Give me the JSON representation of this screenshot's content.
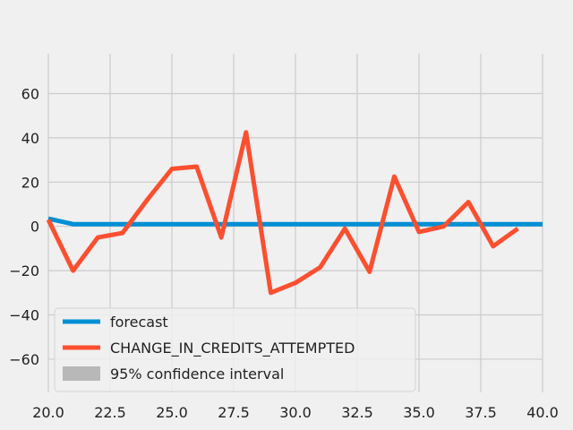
{
  "chart_data": {
    "type": "line",
    "xlim": [
      20.0,
      40.0
    ],
    "ylim": [
      -75,
      78
    ],
    "x_ticks": [
      "20.0",
      "22.5",
      "25.0",
      "27.5",
      "30.0",
      "32.5",
      "35.0",
      "37.5",
      "40.0"
    ],
    "x_tick_values": [
      20.0,
      22.5,
      25.0,
      27.5,
      30.0,
      32.5,
      35.0,
      37.5,
      40.0
    ],
    "y_ticks": [
      "60",
      "40",
      "20",
      "0",
      "−20",
      "−40",
      "−60"
    ],
    "y_tick_values": [
      60,
      40,
      20,
      0,
      -20,
      -40,
      -60
    ],
    "grid": true,
    "legend_placement": "lower-left",
    "series": [
      {
        "name": "forecast",
        "color": "#008fd5",
        "x": [
          20,
          21,
          22,
          23,
          24,
          25,
          26,
          27,
          28,
          29,
          30,
          31,
          32,
          33,
          34,
          35,
          36,
          37,
          38,
          39,
          40
        ],
        "y": [
          3.5,
          1,
          1,
          1,
          1,
          1,
          1,
          1,
          1,
          1,
          1,
          1,
          1,
          1,
          1,
          1,
          1,
          1,
          1,
          1,
          1
        ]
      },
      {
        "name": "CHANGE_IN_CREDITS_ATTEMPTED",
        "color": "#fc4f30",
        "x": [
          20,
          21,
          22,
          23,
          24,
          25,
          26,
          27,
          28,
          29,
          30,
          31,
          32,
          33,
          34,
          35,
          36,
          37,
          38,
          39
        ],
        "y": [
          3,
          -20,
          -5,
          -3,
          12,
          26,
          27,
          -5,
          42.5,
          -30,
          -25.5,
          -18.5,
          -1,
          -20.5,
          22.5,
          -2.5,
          0,
          11,
          -9,
          -1
        ]
      }
    ],
    "confidence_interval": {
      "name": "95% confidence interval",
      "color": "#b8b8b8"
    }
  }
}
